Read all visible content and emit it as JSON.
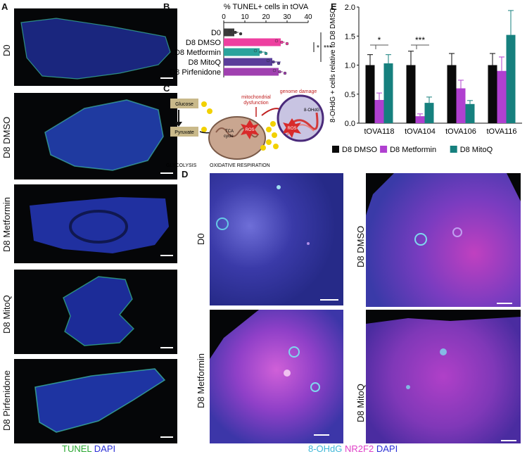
{
  "panels": {
    "a": "A",
    "b": "B",
    "c": "C",
    "d": "D",
    "e": "E"
  },
  "panel_a": {
    "tiles": [
      "D0",
      "D8 DMSO",
      "D8 Metformin",
      "D8 MitoQ",
      "D8 Pirfenidone"
    ],
    "legend_tunel": "TUNEL",
    "legend_dapi": "DAPI",
    "colors": {
      "tunel": "#2aa832",
      "dapi": "#2b2fd6"
    }
  },
  "panel_c": {
    "glucose": "Glucose",
    "pyruvate": "Pyruvate",
    "atp": "ATP",
    "tca": "TCA",
    "cycle": "cycle",
    "ros": "ROS",
    "mito_dys_1": "mitochondrial",
    "mito_dys_2": "dysfunction",
    "genome_damage": "genome damage",
    "ohdg": "8-OHdG",
    "glycolysis": "GLYCOLYSIS",
    "oxresp": "OXIDATIVE RESPIRATION"
  },
  "panel_d": {
    "tiles": [
      "D0",
      "D8 DMSO",
      "D8 Metformin",
      "D8 MitoQ"
    ],
    "legend_ohdg": "8-OHdG",
    "legend_nr2f2": "NR2F2",
    "legend_dapi": "DAPI",
    "colors": {
      "ohdg": "#3fb8d8",
      "nr2f2": "#e040c8",
      "dapi": "#2b2fd6"
    }
  },
  "chart_data": [
    {
      "type": "bar",
      "orientation": "horizontal",
      "title": "% TUNEL+ cells in tOVA",
      "categories": [
        "D0",
        "D8 DMSO",
        "D8 Metformin",
        "D8 MitoQ",
        "D8 Pirfenidone"
      ],
      "values": [
        5,
        27,
        17,
        23,
        26
      ],
      "errors": [
        2,
        2,
        3,
        4,
        2
      ],
      "colors": [
        "#3a3a3a",
        "#ee3fa0",
        "#2aa39c",
        "#5a3d9a",
        "#a040b0"
      ],
      "xlim": [
        0,
        40
      ],
      "xticks": [
        0,
        10,
        20,
        30,
        40
      ],
      "significance": [
        {
          "label": "*",
          "between": [
            "D8 DMSO",
            "D8 Metformin"
          ]
        },
        {
          "label": "***",
          "between": [
            "D0",
            "D8 MitoQ"
          ]
        }
      ]
    },
    {
      "type": "bar",
      "ylabel": "8-OHdG + cells relative to D8 DMSO",
      "categories": [
        "tOVA118",
        "tOVA104",
        "tOVA106",
        "tOVA116"
      ],
      "series": [
        {
          "name": "D8 DMSO",
          "color": "#0a0a0a",
          "values": [
            1.0,
            1.0,
            1.0,
            1.0
          ],
          "errors": [
            0.18,
            0.24,
            0.2,
            0.2
          ]
        },
        {
          "name": "D8 Metformin",
          "color": "#b040d0",
          "values": [
            0.4,
            0.12,
            0.6,
            0.9
          ],
          "errors": [
            0.12,
            0.04,
            0.14,
            0.24
          ]
        },
        {
          "name": "D8 MitoQ",
          "color": "#16807e",
          "values": [
            1.03,
            0.35,
            0.33,
            1.52
          ],
          "errors": [
            0.15,
            0.1,
            0.06,
            0.42
          ]
        }
      ],
      "ylim": [
        0,
        2.0
      ],
      "yticks": [
        "0.0",
        "0.5",
        "1.0",
        "1.5",
        "2.0"
      ],
      "significance": [
        {
          "label": "*",
          "category": "tOVA118"
        },
        {
          "label": "***",
          "category": "tOVA104"
        }
      ]
    }
  ]
}
